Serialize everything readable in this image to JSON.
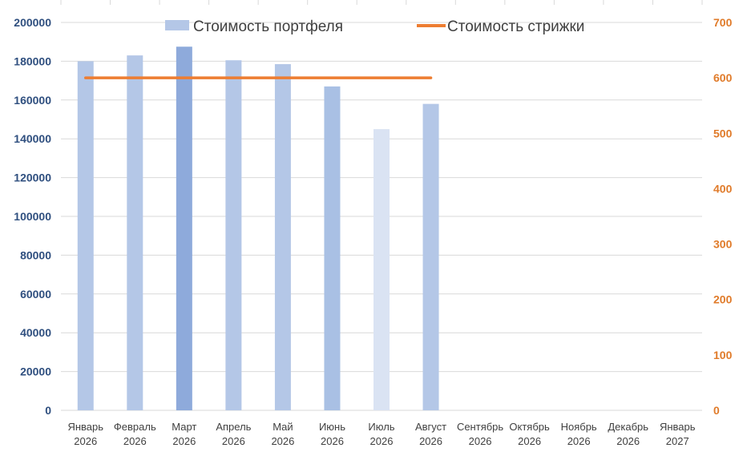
{
  "chart_data": {
    "type": "bar",
    "categories": [
      [
        "Январь",
        "2026"
      ],
      [
        "Февраль",
        "2026"
      ],
      [
        "Март",
        "2026"
      ],
      [
        "Апрель",
        "2026"
      ],
      [
        "Май",
        "2026"
      ],
      [
        "Июнь",
        "2026"
      ],
      [
        "Июль",
        "2026"
      ],
      [
        "Август",
        "2026"
      ],
      [
        "Сентябрь",
        "2026"
      ],
      [
        "Октябрь",
        "2026"
      ],
      [
        "Ноябрь",
        "2026"
      ],
      [
        "Декабрь",
        "2026"
      ],
      [
        "Январь",
        "2027"
      ]
    ],
    "series": [
      {
        "name": "Стоимость портфеля",
        "type": "bar",
        "axis": "left",
        "values": [
          180000,
          183000,
          187500,
          180500,
          178500,
          167000,
          145000,
          158000,
          null,
          null,
          null,
          null,
          null
        ],
        "colors": [
          "#b4c7e7",
          "#b4c7e7",
          "#8eaadb",
          "#b4c7e7",
          "#b4c7e7",
          "#a9c0e4",
          "#dae3f3",
          "#b4c7e7",
          null,
          null,
          null,
          null,
          null
        ]
      },
      {
        "name": "Стоимость стрижки",
        "type": "line",
        "axis": "right",
        "values": [
          600,
          600,
          600,
          600,
          600,
          600,
          600,
          600,
          null,
          null,
          null,
          null,
          null
        ],
        "color": "#ed7d31"
      }
    ],
    "y_left": {
      "min": 0,
      "max": 200000,
      "step": 20000,
      "color": "#2f4f7f",
      "ticks": [
        "0",
        "20000",
        "40000",
        "60000",
        "80000",
        "100000",
        "120000",
        "140000",
        "160000",
        "180000",
        "200000"
      ]
    },
    "y_right": {
      "min": 0,
      "max": 700,
      "step": 100,
      "color": "#e07b2a",
      "ticks": [
        "0",
        "100",
        "200",
        "300",
        "400",
        "500",
        "600",
        "700"
      ]
    },
    "grid": true,
    "legend_position": "top"
  }
}
